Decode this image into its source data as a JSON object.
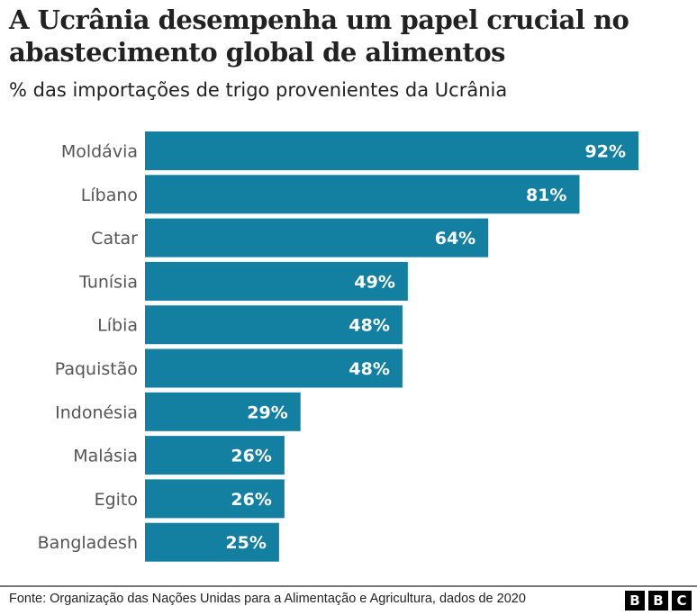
{
  "title": "A Ucrânia desempenha um papel crucial no abastecimento global de alimentos",
  "subtitle": "% das importações de trigo provenientes da Ucrânia",
  "source": "Fonte: Organização das Nações Unidas para a Alimentação e Agricultura, dados de 2020",
  "logo": [
    "B",
    "B",
    "C"
  ],
  "chart_data": {
    "type": "bar",
    "orientation": "horizontal",
    "categories": [
      "Moldávia",
      "Líbano",
      "Catar",
      "Tunísia",
      "Líbia",
      "Paquistão",
      "Indonésia",
      "Malásia",
      "Egito",
      "Bangladesh"
    ],
    "values": [
      92,
      81,
      64,
      49,
      48,
      48,
      29,
      26,
      26,
      25
    ],
    "data_labels": [
      "92%",
      "81%",
      "64%",
      "49%",
      "48%",
      "48%",
      "29%",
      "26%",
      "26%",
      "25%"
    ],
    "color": "#1380A1",
    "xlim": [
      0,
      100
    ],
    "grid": false
  }
}
